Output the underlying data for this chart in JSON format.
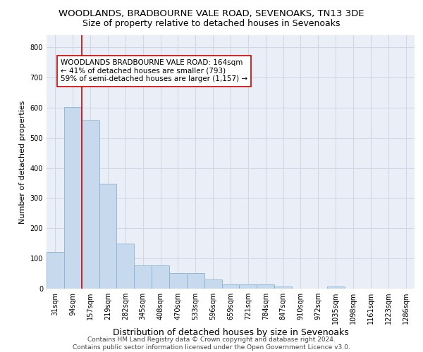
{
  "title": "WOODLANDS, BRADBOURNE VALE ROAD, SEVENOAKS, TN13 3DE",
  "subtitle": "Size of property relative to detached houses in Sevenoaks",
  "xlabel": "Distribution of detached houses by size in Sevenoaks",
  "ylabel": "Number of detached properties",
  "categories": [
    "31sqm",
    "94sqm",
    "157sqm",
    "219sqm",
    "282sqm",
    "345sqm",
    "408sqm",
    "470sqm",
    "533sqm",
    "596sqm",
    "659sqm",
    "721sqm",
    "784sqm",
    "847sqm",
    "910sqm",
    "972sqm",
    "1035sqm",
    "1098sqm",
    "1161sqm",
    "1223sqm",
    "1286sqm"
  ],
  "values": [
    122,
    603,
    558,
    347,
    150,
    78,
    78,
    51,
    51,
    30,
    15,
    13,
    13,
    7,
    0,
    0,
    6,
    0,
    0,
    0,
    0
  ],
  "bar_color": "#c6d9ed",
  "bar_edge_color": "#89b3d4",
  "vline_x": 1.5,
  "vline_color": "#cc0000",
  "annotation_text": "WOODLANDS BRADBOURNE VALE ROAD: 164sqm\n← 41% of detached houses are smaller (793)\n59% of semi-detached houses are larger (1,157) →",
  "annotation_box_color": "#ffffff",
  "annotation_box_edge": "#cc0000",
  "ylim": [
    0,
    840
  ],
  "yticks": [
    0,
    100,
    200,
    300,
    400,
    500,
    600,
    700,
    800
  ],
  "grid_color": "#d0d8e8",
  "bg_color": "#eaeff7",
  "footer_line1": "Contains HM Land Registry data © Crown copyright and database right 2024.",
  "footer_line2": "Contains public sector information licensed under the Open Government Licence v3.0.",
  "title_fontsize": 9.5,
  "subtitle_fontsize": 9,
  "xlabel_fontsize": 9,
  "ylabel_fontsize": 8,
  "tick_fontsize": 7,
  "annotation_fontsize": 7.5,
  "footer_fontsize": 6.5
}
